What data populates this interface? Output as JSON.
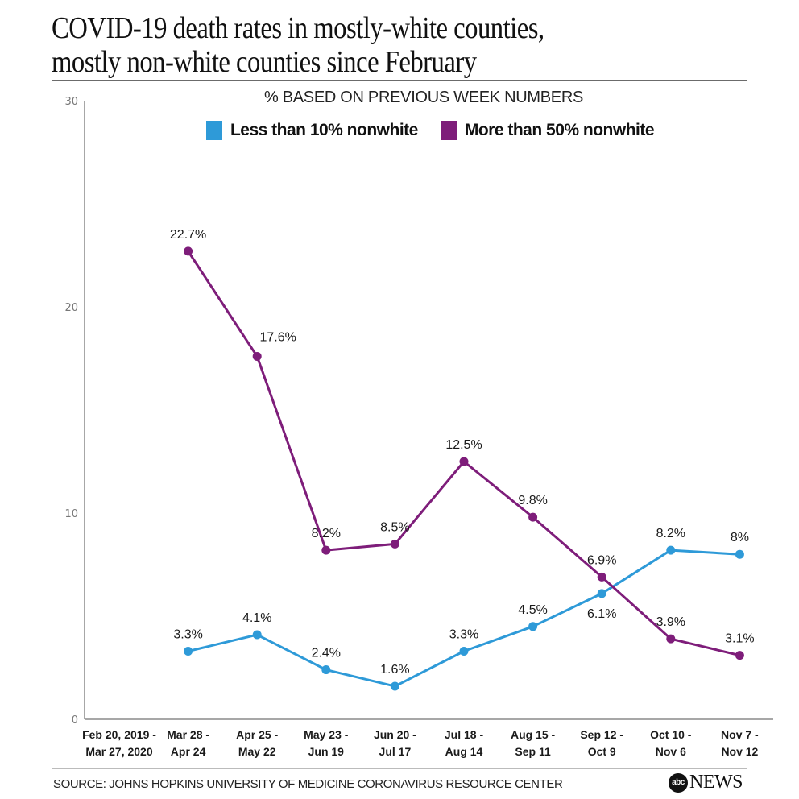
{
  "header": {
    "title_line1": "COVID-19 death rates in mostly-white counties,",
    "title_line2": "mostly non-white counties since February",
    "subtitle": "% BASED ON PREVIOUS WEEK NUMBERS"
  },
  "footer": {
    "source": "SOURCE:  JOHNS HOPKINS UNIVERSITY OF MEDICINE CORONAVIRUS RESOURCE CENTER",
    "logo_abc": "abc",
    "logo_news": "NEWS"
  },
  "chart_data": {
    "type": "line",
    "title": "COVID-19 death rates in mostly-white counties, mostly non-white counties since February",
    "subtitle": "% BASED ON PREVIOUS WEEK NUMBERS",
    "xlabel": "",
    "ylabel": "",
    "ylim": [
      0,
      30
    ],
    "yticks": [
      0,
      10,
      20,
      30
    ],
    "grid": false,
    "legend_position": "top-center",
    "categories": [
      [
        "Feb 20, 2019 -",
        "Mar 27, 2020"
      ],
      [
        "Mar  28 -",
        "Apr 24"
      ],
      [
        "Apr 25 -",
        "May 22"
      ],
      [
        "May 23 -",
        "Jun 19"
      ],
      [
        "Jun 20 -",
        "Jul 17"
      ],
      [
        "Jul 18 -",
        "Aug 14"
      ],
      [
        "Aug 15 -",
        "Sep 11"
      ],
      [
        "Sep 12 -",
        "Oct 9"
      ],
      [
        "Oct 10 -",
        "Nov 6"
      ],
      [
        "Nov 7 -",
        "Nov 12"
      ]
    ],
    "series": [
      {
        "name": "Less than 10% nonwhite",
        "color": "#2e9ad8",
        "values": [
          null,
          3.3,
          4.1,
          2.4,
          1.6,
          3.3,
          4.5,
          6.1,
          8.2,
          8.0
        ],
        "labels": [
          null,
          "3.3%",
          "4.1%",
          "2.4%",
          "1.6%",
          "3.3%",
          "4.5%",
          "6.1%",
          "8.2%",
          "8%"
        ],
        "label_pos": [
          null,
          "above",
          "above",
          "above",
          "above",
          "above",
          "above",
          "below",
          "above",
          "above"
        ]
      },
      {
        "name": "More than 50% nonwhite",
        "color": "#7e1d7a",
        "values": [
          null,
          22.7,
          17.6,
          8.2,
          8.5,
          12.5,
          9.8,
          6.9,
          3.9,
          3.1
        ],
        "labels": [
          null,
          "22.7%",
          "17.6%",
          "8.2%",
          "8.5%",
          "12.5%",
          "9.8%",
          "6.9%",
          "3.9%",
          "3.1%"
        ],
        "label_pos": [
          null,
          "above",
          "above-right",
          "above",
          "above",
          "above",
          "above",
          "above",
          "above",
          "above"
        ]
      }
    ]
  }
}
